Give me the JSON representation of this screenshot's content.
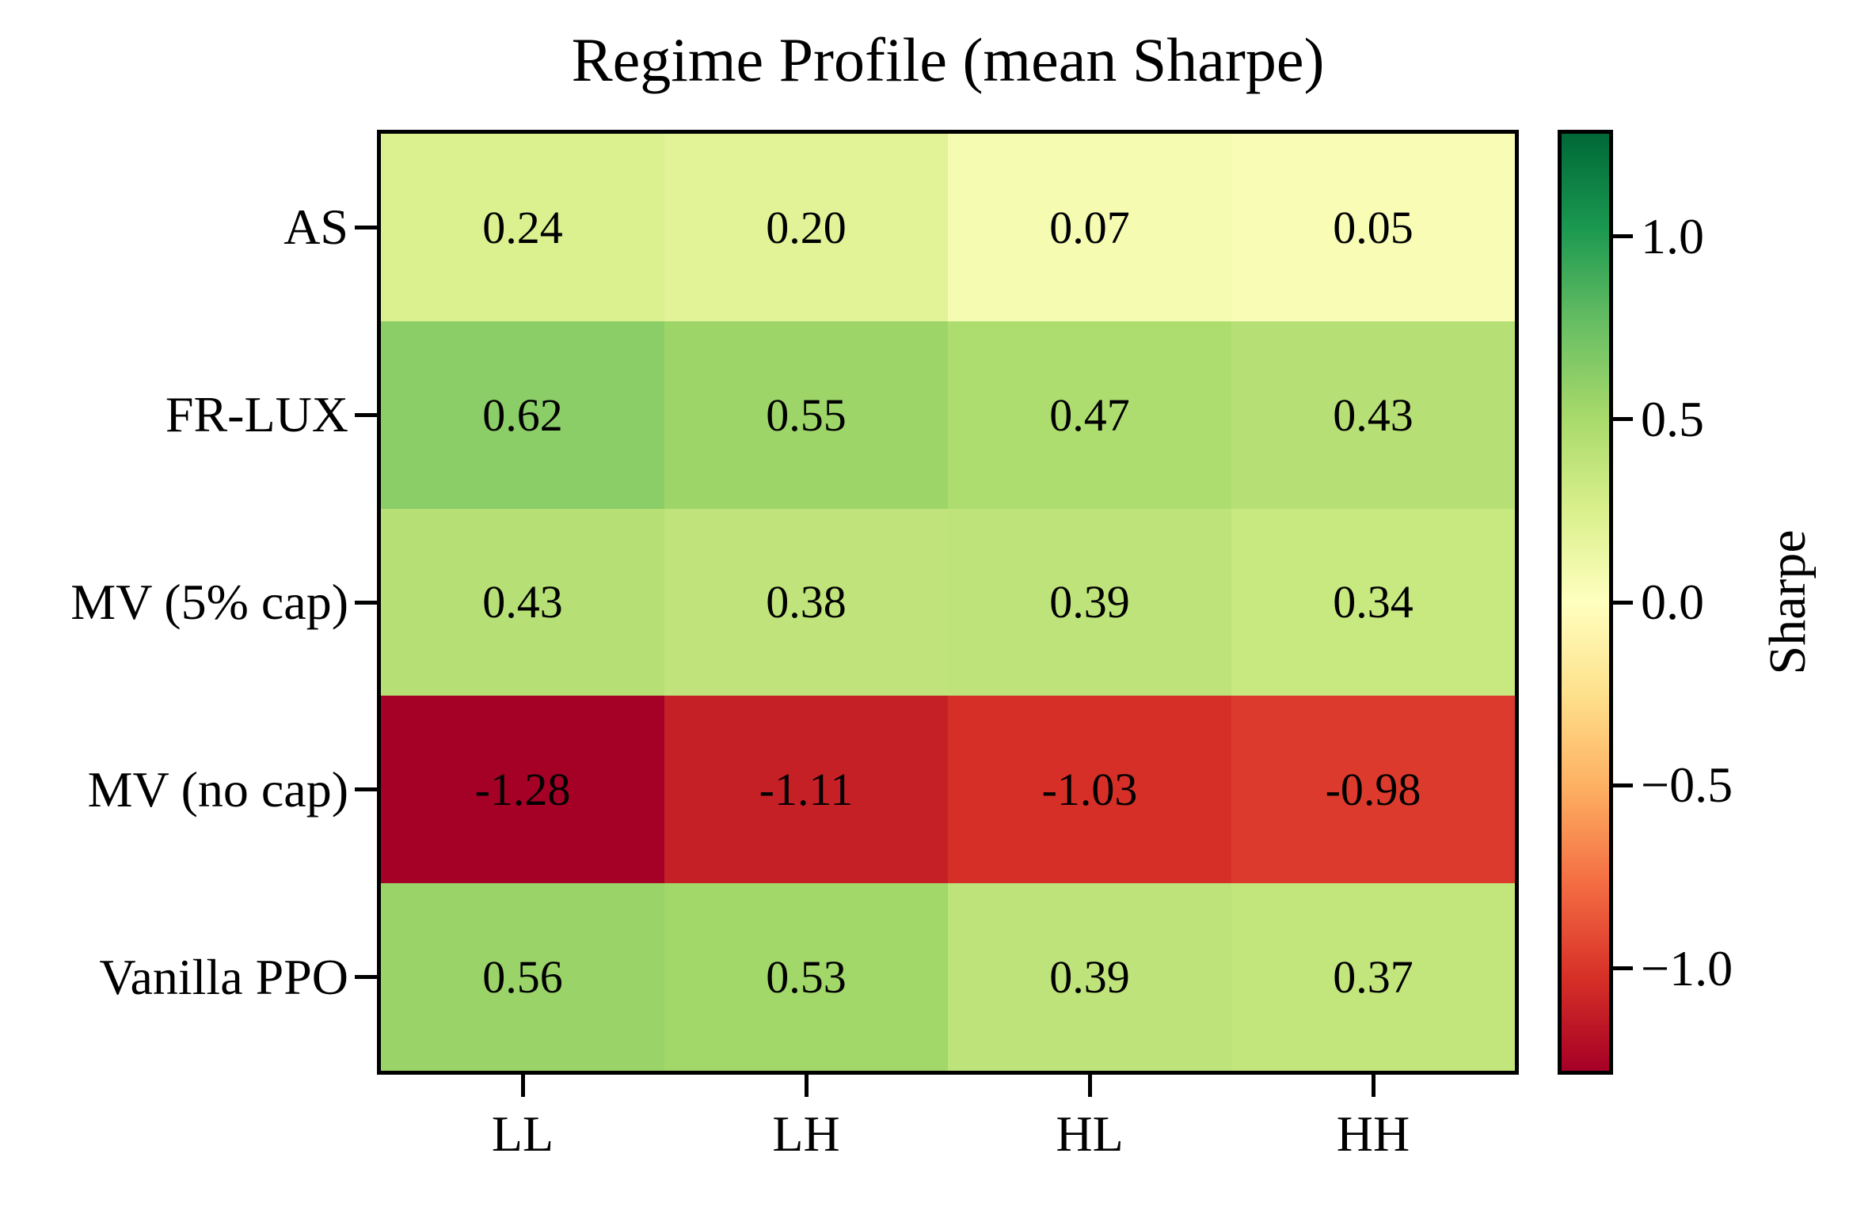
{
  "figure": {
    "background": "#ffffff",
    "axis_color": "#000000",
    "text_color": "#000000"
  },
  "chart_data": {
    "type": "heatmap",
    "title": "Regime Profile (mean Sharpe)",
    "rows": [
      "AS",
      "FR-LUX",
      "MV (5% cap)",
      "MV (no cap)",
      "Vanilla PPO"
    ],
    "columns": [
      "LL",
      "LH",
      "HL",
      "HH"
    ],
    "values": [
      [
        0.24,
        0.2,
        0.07,
        0.05
      ],
      [
        0.62,
        0.55,
        0.47,
        0.43
      ],
      [
        0.43,
        0.38,
        0.39,
        0.34
      ],
      [
        -1.28,
        -1.11,
        -1.03,
        -0.98
      ],
      [
        0.56,
        0.53,
        0.39,
        0.37
      ]
    ],
    "cell_labels": [
      [
        "0.24",
        "0.20",
        "0.07",
        "0.05"
      ],
      [
        "0.62",
        "0.55",
        "0.47",
        "0.43"
      ],
      [
        "0.43",
        "0.38",
        "0.39",
        "0.34"
      ],
      [
        "-1.28",
        "-1.11",
        "-1.03",
        "-0.98"
      ],
      [
        "0.56",
        "0.53",
        "0.39",
        "0.37"
      ]
    ],
    "grid": false,
    "legend_position": "right-colorbar",
    "colorbar": {
      "label": "Sharpe",
      "vmin": -1.28,
      "vmax": 1.28,
      "ticks": [
        {
          "value": 1.0,
          "label": "1.0"
        },
        {
          "value": 0.5,
          "label": "0.5"
        },
        {
          "value": 0.0,
          "label": "0.0"
        },
        {
          "value": -0.5,
          "label": "−0.5"
        },
        {
          "value": -1.0,
          "label": "−1.0"
        }
      ]
    },
    "colormap": {
      "name": "RdYlGn",
      "anchors": [
        "#a50026",
        "#d73027",
        "#f46d43",
        "#fdae61",
        "#fee08b",
        "#ffffbf",
        "#d9ef8b",
        "#a6d96a",
        "#66bd63",
        "#1a9850",
        "#006837"
      ]
    }
  }
}
